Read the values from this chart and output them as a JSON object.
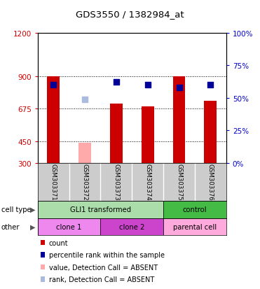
{
  "title": "GDS3550 / 1382984_at",
  "samples": [
    "GSM303371",
    "GSM303372",
    "GSM303373",
    "GSM303374",
    "GSM303375",
    "GSM303376"
  ],
  "count_values": [
    900,
    null,
    710,
    690,
    900,
    730
  ],
  "percentile_values": [
    60,
    null,
    62,
    60,
    58,
    60
  ],
  "absent_count": [
    null,
    440,
    null,
    null,
    null,
    null
  ],
  "absent_rank": [
    null,
    49,
    null,
    null,
    null,
    null
  ],
  "ylim_left": [
    300,
    1200
  ],
  "ylim_right": [
    0,
    100
  ],
  "yticks_left": [
    300,
    450,
    675,
    900,
    1200
  ],
  "yticks_right": [
    0,
    25,
    50,
    75,
    100
  ],
  "hgrid_vals": [
    450,
    675,
    900
  ],
  "cell_type_groups": [
    {
      "label": "GLI1 transformed",
      "cols": [
        0,
        1,
        2,
        3
      ],
      "color": "#aaddaa"
    },
    {
      "label": "control",
      "cols": [
        4,
        5
      ],
      "color": "#44bb44"
    }
  ],
  "other_groups": [
    {
      "label": "clone 1",
      "cols": [
        0,
        1
      ],
      "color": "#ee88ee"
    },
    {
      "label": "clone 2",
      "cols": [
        2,
        3
      ],
      "color": "#cc44cc"
    },
    {
      "label": "parental cell",
      "cols": [
        4,
        5
      ],
      "color": "#ffaadd"
    }
  ],
  "bar_color_present": "#cc0000",
  "bar_color_absent": "#ffaaaa",
  "rank_color_present": "#000099",
  "rank_color_absent": "#aabbdd",
  "bar_width": 0.4,
  "tick_color_left": "#cc0000",
  "tick_color_right": "#0000cc",
  "sample_box_color": "#cccccc",
  "legend_items": [
    {
      "color": "#cc0000",
      "label": "count"
    },
    {
      "color": "#000099",
      "label": "percentile rank within the sample"
    },
    {
      "color": "#ffaaaa",
      "label": "value, Detection Call = ABSENT"
    },
    {
      "color": "#aabbdd",
      "label": "rank, Detection Call = ABSENT"
    }
  ],
  "row_label_color": "#555555"
}
